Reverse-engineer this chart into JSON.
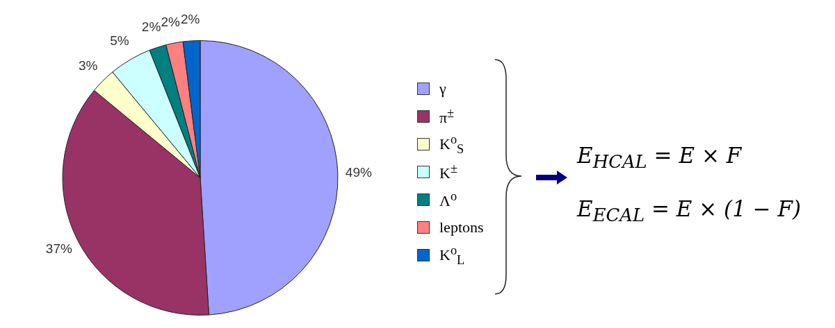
{
  "chart_data": {
    "type": "pie",
    "categories": [
      "γ",
      "π$^{±}$",
      "K$^{o}$$_{S}$",
      "K$^{±}$",
      "Λ$^{o}$",
      "leptons",
      "K$^{o}$$_{L}$"
    ],
    "values": [
      49,
      37,
      3,
      5,
      2,
      2,
      2
    ],
    "value_labels": [
      "49%",
      "37%",
      "3%",
      "5%",
      "2%",
      "2%",
      "2%"
    ],
    "colors": [
      "#a0a0ff",
      "#993366",
      "#ffffcc",
      "#ccffff",
      "#008080",
      "#ff8080",
      "#0066cc"
    ],
    "legend": "right",
    "annotations": [
      "E$_{HCAL}$ = E × F",
      "E$_{ECAL}$ = E × (1 − F)"
    ]
  }
}
